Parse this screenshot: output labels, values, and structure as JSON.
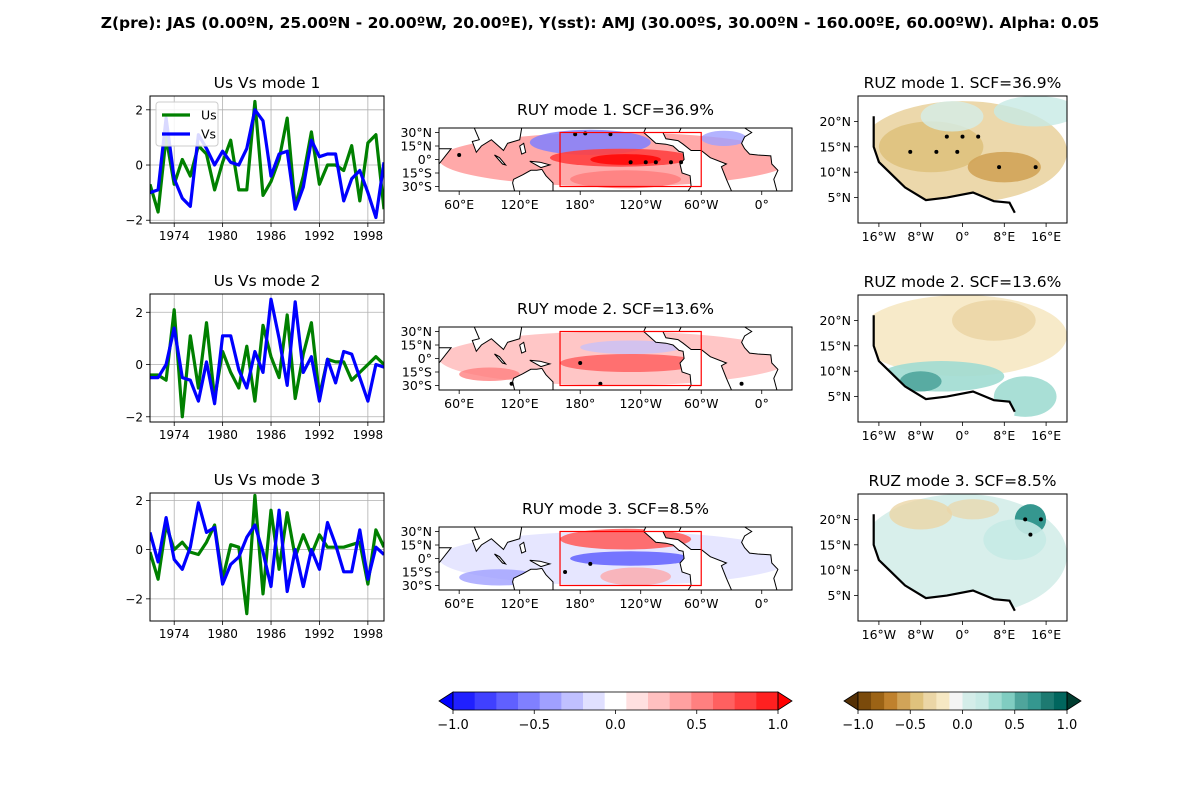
{
  "figure": {
    "suptitle": "Z(pre): JAS (0.00ºN, 25.00ºN - 20.00ºW, 20.00ºE), Y(sst): AMJ (30.00ºS, 30.00ºN - 160.00ºE, 60.00ºW). Alpha: 0.05"
  },
  "colors": {
    "us_line": "#008000",
    "vs_line": "#0000ff",
    "box_outline": "#ff0000",
    "coast": "#000000",
    "grid": "#b0b0b0",
    "bwr_scale": [
      "#0000ff",
      "#2020ff",
      "#4040ff",
      "#6060ff",
      "#8080ff",
      "#a0a0ff",
      "#c0c0ff",
      "#e0e0ff",
      "#ffffff",
      "#ffe0e0",
      "#ffc0c0",
      "#ffa0a0",
      "#ff8080",
      "#ff6060",
      "#ff4040",
      "#ff2020",
      "#ff0000"
    ],
    "brbg_scale": [
      "#543005",
      "#7a4a0b",
      "#9c6315",
      "#bf812d",
      "#d1a458",
      "#dfc27d",
      "#ebd6a6",
      "#f6e8c3",
      "#f5f5f5",
      "#d4ede9",
      "#c7eae5",
      "#a0dcd2",
      "#80cdc1",
      "#4fa59c",
      "#35978f",
      "#1d7a71",
      "#01665e",
      "#003c30"
    ]
  },
  "chart_data": [
    {
      "type": "line",
      "title": "Us Vs mode 1",
      "x": [
        1971,
        1972,
        1973,
        1974,
        1975,
        1976,
        1977,
        1978,
        1979,
        1980,
        1981,
        1982,
        1983,
        1984,
        1985,
        1986,
        1987,
        1988,
        1989,
        1990,
        1991,
        1992,
        1993,
        1994,
        1995,
        1996,
        1997,
        1998,
        1999,
        2000
      ],
      "xticks": [
        "1974",
        "1980",
        "1986",
        "1992",
        "1998"
      ],
      "xtick_values": [
        1974,
        1980,
        1986,
        1992,
        1998
      ],
      "yticks": [
        "−2",
        "0",
        "2"
      ],
      "ytick_values": [
        -2,
        0,
        2
      ],
      "ylim": [
        -2.1,
        2.5
      ],
      "xlim": [
        1971,
        2000
      ],
      "grid": true,
      "legend": {
        "position": "upper-left",
        "entries": [
          "Us",
          "Vs"
        ]
      },
      "series": [
        {
          "name": "Us",
          "color": "#008000",
          "values": [
            -0.7,
            -1.7,
            1.0,
            -0.7,
            0.2,
            -0.4,
            0.7,
            0.4,
            -0.9,
            0.1,
            0.9,
            -0.9,
            -0.9,
            2.3,
            -1.1,
            -0.6,
            0.2,
            1.7,
            -1.5,
            -0.4,
            1.2,
            -0.7,
            0.0,
            0.0,
            -0.2,
            0.7,
            -1.3,
            0.8,
            1.1,
            -1.6
          ]
        },
        {
          "name": "Vs",
          "color": "#0000ff",
          "values": [
            -1.0,
            -0.9,
            1.7,
            -0.5,
            -1.2,
            -1.5,
            1.1,
            0.6,
            0.0,
            0.5,
            0.1,
            0.0,
            0.6,
            2.0,
            1.6,
            -0.4,
            0.4,
            0.5,
            -1.6,
            -0.8,
            0.9,
            0.3,
            0.4,
            0.4,
            -1.3,
            -0.5,
            -0.2,
            -1.0,
            -1.9,
            0.1
          ]
        }
      ]
    },
    {
      "type": "line",
      "title": "Us Vs mode 2",
      "x": [
        1971,
        1972,
        1973,
        1974,
        1975,
        1976,
        1977,
        1978,
        1979,
        1980,
        1981,
        1982,
        1983,
        1984,
        1985,
        1986,
        1987,
        1988,
        1989,
        1990,
        1991,
        1992,
        1993,
        1994,
        1995,
        1996,
        1997,
        1998,
        1999,
        2000
      ],
      "xticks": [
        "1974",
        "1980",
        "1986",
        "1992",
        "1998"
      ],
      "xtick_values": [
        1974,
        1980,
        1986,
        1992,
        1998
      ],
      "yticks": [
        "−2",
        "0",
        "2"
      ],
      "ytick_values": [
        -2,
        0,
        2
      ],
      "ylim": [
        -2.2,
        2.7
      ],
      "xlim": [
        1971,
        2000
      ],
      "grid": true,
      "series": [
        {
          "name": "Us",
          "color": "#008000",
          "values": [
            -0.4,
            -0.4,
            -0.6,
            2.1,
            -2.0,
            1.1,
            -0.9,
            1.6,
            -1.3,
            0.5,
            -0.3,
            -0.9,
            0.7,
            -1.4,
            1.5,
            0.3,
            -0.5,
            1.9,
            -1.3,
            0.4,
            1.6,
            -1.2,
            0.2,
            0.1,
            0.1,
            -0.6,
            -0.3,
            0.0,
            0.3,
            0.0
          ]
        },
        {
          "name": "Vs",
          "color": "#0000ff",
          "values": [
            -0.5,
            -0.5,
            0.0,
            1.4,
            -0.5,
            -0.6,
            -1.4,
            0.1,
            -1.5,
            1.1,
            1.1,
            -0.2,
            -0.9,
            0.5,
            -0.3,
            2.5,
            1.0,
            -0.8,
            2.4,
            -0.3,
            0.3,
            -1.4,
            0.2,
            -0.7,
            0.5,
            0.4,
            -0.5,
            -1.4,
            0.0,
            -0.1
          ]
        }
      ]
    },
    {
      "type": "line",
      "title": "Us Vs mode 3",
      "x": [
        1971,
        1972,
        1973,
        1974,
        1975,
        1976,
        1977,
        1978,
        1979,
        1980,
        1981,
        1982,
        1983,
        1984,
        1985,
        1986,
        1987,
        1988,
        1989,
        1990,
        1991,
        1992,
        1993,
        1994,
        1995,
        1996,
        1997,
        1998,
        1999,
        2000
      ],
      "xticks": [
        "1974",
        "1980",
        "1986",
        "1992",
        "1998"
      ],
      "xtick_values": [
        1974,
        1980,
        1986,
        1992,
        1998
      ],
      "yticks": [
        "−2",
        "0",
        "2"
      ],
      "ytick_values": [
        -2,
        0,
        2
      ],
      "ylim": [
        -2.9,
        2.3
      ],
      "xlim": [
        1971,
        2000
      ],
      "grid": true,
      "series": [
        {
          "name": "Us",
          "color": "#008000",
          "values": [
            -0.1,
            -1.2,
            1.0,
            0.0,
            0.3,
            -0.1,
            -0.2,
            0.3,
            1.0,
            -1.2,
            0.2,
            0.1,
            -2.6,
            2.2,
            -1.8,
            1.6,
            -0.8,
            1.5,
            -0.3,
            0.6,
            -0.2,
            0.6,
            0.1,
            0.1,
            0.1,
            0.2,
            0.3,
            -1.4,
            0.8,
            0.1
          ]
        },
        {
          "name": "Vs",
          "color": "#0000ff",
          "values": [
            0.7,
            -0.5,
            1.3,
            -0.4,
            -0.8,
            0.1,
            1.9,
            0.7,
            0.9,
            -1.4,
            -0.6,
            -0.3,
            0.5,
            1.0,
            -0.1,
            -1.5,
            1.6,
            -1.7,
            0.0,
            -1.5,
            0.0,
            -0.8,
            1.1,
            0.2,
            -0.9,
            -0.9,
            0.8,
            -1.2,
            0.1,
            -0.2
          ]
        }
      ]
    },
    {
      "type": "heatmap",
      "title": "RUY mode 1. SCF=36.9%",
      "xticks": [
        "60°E",
        "120°E",
        "180°",
        "120°W",
        "60°W",
        "0°"
      ],
      "yticks": [
        "30°N",
        "15°N",
        "0°",
        "15°S",
        "30°S"
      ],
      "region_box": {
        "lon": [
          160,
          300
        ],
        "lat": [
          -30,
          30
        ]
      },
      "pattern": "positive tropical Pacific band, negative subtropics",
      "value_range": [
        -1.0,
        1.0
      ]
    },
    {
      "type": "heatmap",
      "title": "RUY mode 2. SCF=13.6%",
      "xticks": [
        "60°E",
        "120°E",
        "180°",
        "120°W",
        "60°W",
        "0°"
      ],
      "yticks": [
        "30°N",
        "15°N",
        "0°",
        "15°S",
        "30°S"
      ],
      "region_box": {
        "lon": [
          160,
          300
        ],
        "lat": [
          -30,
          30
        ]
      },
      "pattern": "mostly weak positive, red southern band",
      "value_range": [
        -1.0,
        1.0
      ]
    },
    {
      "type": "heatmap",
      "title": "RUY mode 3. SCF=8.5%",
      "xticks": [
        "60°E",
        "120°E",
        "180°",
        "120°W",
        "60°W",
        "0°"
      ],
      "yticks": [
        "30°N",
        "15°N",
        "0°",
        "15°S",
        "30°S"
      ],
      "region_box": {
        "lon": [
          160,
          300
        ],
        "lat": [
          -30,
          30
        ]
      },
      "pattern": "red north Pacific, blue equatorial band",
      "value_range": [
        -1.0,
        1.0
      ]
    },
    {
      "type": "heatmap",
      "title": "RUZ mode 1. SCF=36.9%",
      "xticks": [
        "16°W",
        "8°W",
        "0°",
        "8°E",
        "16°E"
      ],
      "yticks": [
        "20°N",
        "15°N",
        "10°N",
        "5°N"
      ],
      "pattern": "widespread negative (brown) over Sahel",
      "value_range": [
        -1.0,
        1.0
      ]
    },
    {
      "type": "heatmap",
      "title": "RUZ mode 2. SCF=13.6%",
      "xticks": [
        "16°W",
        "8°W",
        "0°",
        "8°E",
        "16°E"
      ],
      "yticks": [
        "20°N",
        "15°N",
        "10°N",
        "5°N"
      ],
      "pattern": "weak brown north, teal along Guinea coast",
      "value_range": [
        -1.0,
        1.0
      ]
    },
    {
      "type": "heatmap",
      "title": "RUZ mode 3. SCF=8.5%",
      "xticks": [
        "16°W",
        "8°W",
        "0°",
        "8°E",
        "16°E"
      ],
      "yticks": [
        "20°N",
        "15°N",
        "10°N",
        "5°N"
      ],
      "pattern": "mostly teal, strong teal spot northeast",
      "value_range": [
        -1.0,
        1.0
      ]
    }
  ],
  "colorbars": [
    {
      "name": "sst-colorbar",
      "ticks": [
        "−1.0",
        "−0.5",
        "0.0",
        "0.5",
        "1.0"
      ],
      "tick_values": [
        -1.0,
        -0.5,
        0.0,
        0.5,
        1.0
      ]
    },
    {
      "name": "pre-colorbar",
      "ticks": [
        "−1.0",
        "−0.5",
        "0.0",
        "0.5",
        "1.0"
      ],
      "tick_values": [
        -1.0,
        -0.5,
        0.0,
        0.5,
        1.0
      ]
    }
  ]
}
